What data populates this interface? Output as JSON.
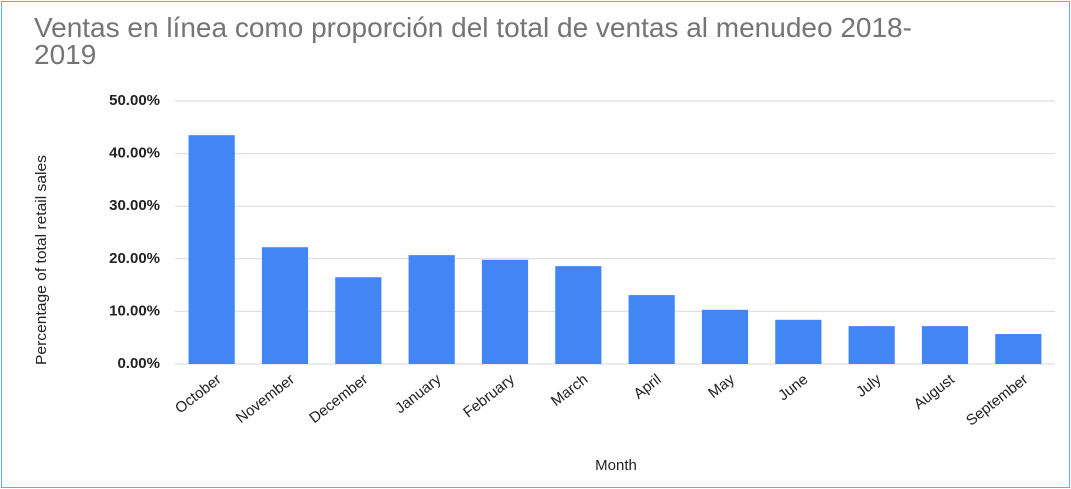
{
  "chart_data": {
    "type": "bar",
    "title": "Ventas en línea como proporción del total de ventas al menudeo 2018-2019",
    "x_label": "Month",
    "y_label": "Percentage of total retail sales",
    "categories": [
      "October",
      "November",
      "December",
      "January",
      "February",
      "March",
      "April",
      "May",
      "June",
      "July",
      "August",
      "September"
    ],
    "values": [
      43.5,
      22.2,
      16.5,
      20.7,
      19.8,
      18.6,
      13.1,
      10.3,
      8.4,
      7.2,
      7.2,
      5.7
    ],
    "color": "#4285f4",
    "ylim": [
      0,
      50
    ],
    "yticks": [
      {
        "value": 0,
        "label": "0.00%"
      },
      {
        "value": 10,
        "label": "10.00%"
      },
      {
        "value": 20,
        "label": "20.00%"
      },
      {
        "value": 30,
        "label": "30.00%"
      },
      {
        "value": 40,
        "label": "40.00%"
      },
      {
        "value": 50,
        "label": "50.00%"
      }
    ],
    "grid": true
  }
}
